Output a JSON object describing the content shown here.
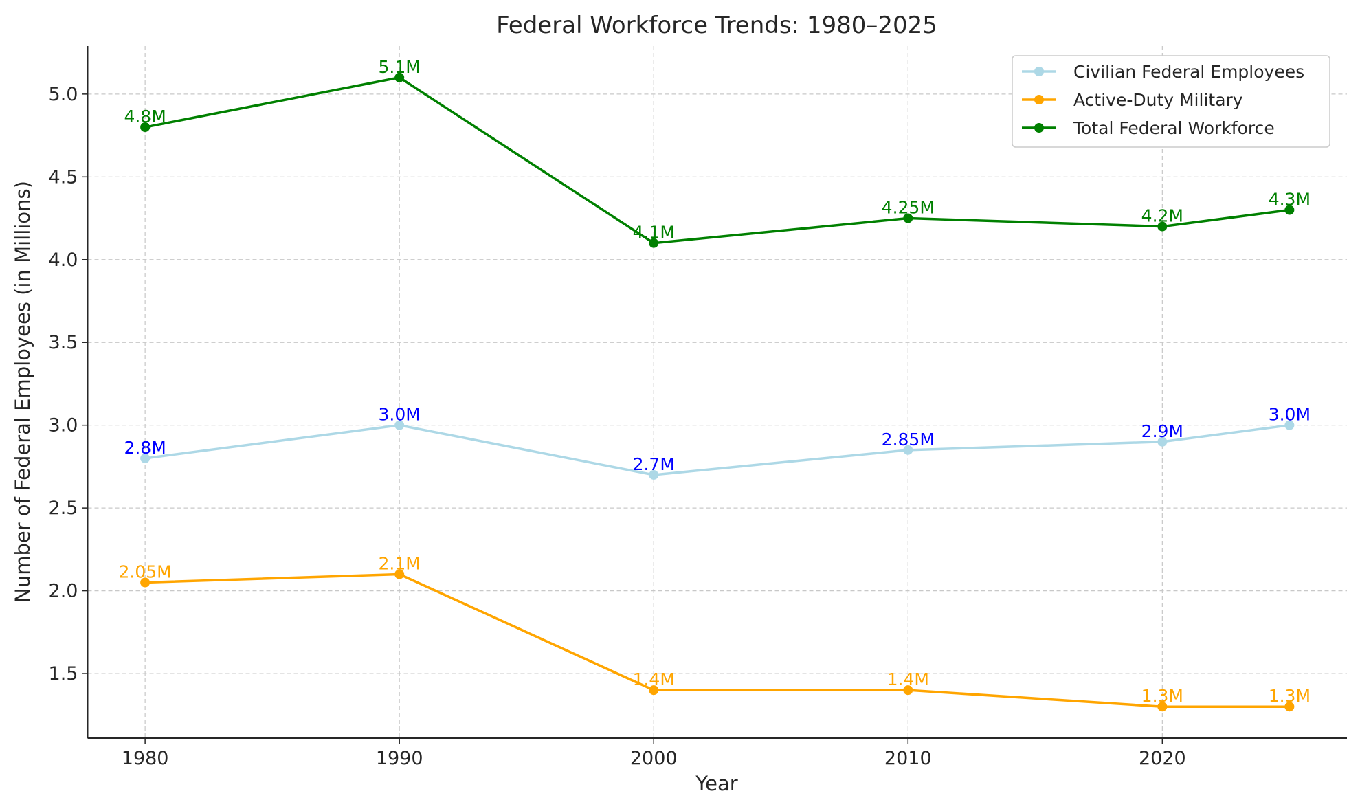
{
  "chart_data": {
    "type": "line",
    "title": "Federal Workforce Trends: 1980–2025",
    "xlabel": "Year",
    "ylabel": "Number of Federal Employees (in Millions)",
    "x": [
      1980,
      1990,
      2000,
      2010,
      2020,
      2025
    ],
    "xlim": [
      1977.74,
      2027.26
    ],
    "ylim": [
      1.11,
      5.29
    ],
    "xticks": [
      1980,
      1990,
      2000,
      2010,
      2020
    ],
    "yticks": [
      "1.5",
      "2.0",
      "2.5",
      "3.0",
      "3.5",
      "4.0",
      "4.5",
      "5.0"
    ],
    "grid": true,
    "legend_position": "top-right",
    "series": [
      {
        "name": "Civilian Federal Employees",
        "color": "#add8e6",
        "label_color": "#0000ff",
        "values": [
          2.8,
          3.0,
          2.7,
          2.85,
          2.9,
          3.0
        ],
        "labels": [
          "2.8M",
          "3.0M",
          "2.7M",
          "2.85M",
          "2.9M",
          "3.0M"
        ]
      },
      {
        "name": "Active-Duty Military",
        "color": "#ffa500",
        "label_color": "#ffa500",
        "values": [
          2.05,
          2.1,
          1.4,
          1.4,
          1.3,
          1.3
        ],
        "labels": [
          "2.05M",
          "2.1M",
          "1.4M",
          "1.4M",
          "1.3M",
          "1.3M"
        ]
      },
      {
        "name": "Total Federal Workforce",
        "color": "#008000",
        "label_color": "#008000",
        "values": [
          4.8,
          5.1,
          4.1,
          4.25,
          4.2,
          4.3
        ],
        "labels": [
          "4.8M",
          "5.1M",
          "4.1M",
          "4.25M",
          "4.2M",
          "4.3M"
        ]
      }
    ]
  }
}
